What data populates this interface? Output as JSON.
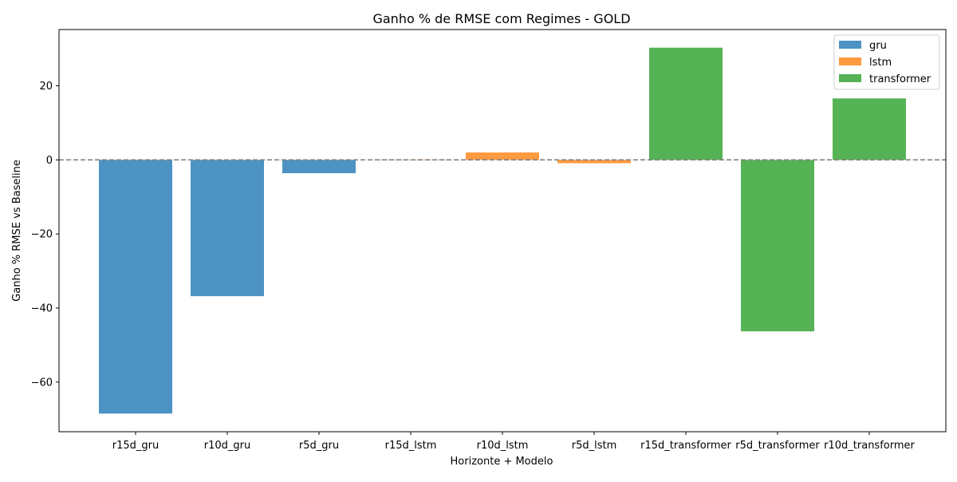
{
  "chart_data": {
    "type": "bar",
    "title": "Ganho % de RMSE com Regimes - GOLD",
    "xlabel": "Horizonte + Modelo",
    "ylabel": "Ganho % RMSE vs Baseline",
    "categories": [
      "r15d_gru",
      "r10d_gru",
      "r5d_gru",
      "r15d_lstm",
      "r10d_lstm",
      "r5d_lstm",
      "r15d_transformer",
      "r5d_transformer",
      "r10d_transformer"
    ],
    "values": [
      -68.5,
      -36.8,
      -3.6,
      0.1,
      2.0,
      -0.9,
      30.3,
      -46.3,
      16.6
    ],
    "bar_series": [
      "gru",
      "gru",
      "gru",
      "lstm",
      "lstm",
      "lstm",
      "transformer",
      "transformer",
      "transformer"
    ],
    "series": [
      {
        "name": "gru",
        "color": "#4c93c3"
      },
      {
        "name": "lstm",
        "color": "#ff9a40"
      },
      {
        "name": "transformer",
        "color": "#55b355"
      }
    ],
    "ylim": [
      -73.4,
      35.2
    ],
    "yticks": [
      -60,
      -40,
      -20,
      0,
      20
    ],
    "ytick_labels": [
      "−60",
      "−40",
      "−20",
      "0",
      "20"
    ],
    "baseline": 0,
    "grid": false,
    "legend_position": "top-right"
  }
}
